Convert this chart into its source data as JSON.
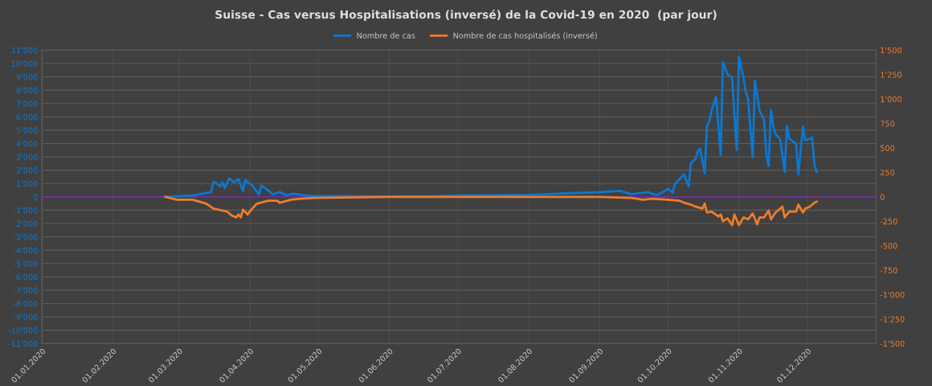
{
  "chart_data": {
    "type": "line",
    "title": "Suisse - Cas versus Hospitalisations (inversé) de la Covid-19 en 2020  (par jour)",
    "series": [
      {
        "name": "Nombre de cas",
        "color": "#0a78d2",
        "axis": "y",
        "x": [
          "2020-02-24",
          "2020-03-07",
          "2020-03-15",
          "2020-03-16",
          "2020-03-17",
          "2020-03-19",
          "2020-03-20",
          "2020-03-21",
          "2020-03-23",
          "2020-03-25",
          "2020-03-27",
          "2020-03-29",
          "2020-03-30",
          "2020-03-31",
          "2020-04-02",
          "2020-04-05",
          "2020-04-06",
          "2020-04-09",
          "2020-04-11",
          "2020-04-14",
          "2020-04-17",
          "2020-04-20",
          "2020-04-25",
          "2020-04-28",
          "2020-05-15",
          "2020-06-01",
          "2020-06-20",
          "2020-07-01",
          "2020-07-15",
          "2020-08-01",
          "2020-08-15",
          "2020-09-01",
          "2020-09-10",
          "2020-09-15",
          "2020-09-20",
          "2020-09-22",
          "2020-09-26",
          "2020-09-28",
          "2020-10-01",
          "2020-10-03",
          "2020-10-04",
          "2020-10-06",
          "2020-10-08",
          "2020-10-10",
          "2020-10-11",
          "2020-10-13",
          "2020-10-14",
          "2020-10-15",
          "2020-10-17",
          "2020-10-18",
          "2020-10-19",
          "2020-10-20",
          "2020-10-22",
          "2020-10-24",
          "2020-10-25",
          "2020-10-26",
          "2020-10-27",
          "2020-10-29",
          "2020-10-31",
          "2020-11-01",
          "2020-11-03",
          "2020-11-04",
          "2020-11-05",
          "2020-11-07",
          "2020-11-08",
          "2020-11-10",
          "2020-11-12",
          "2020-11-13",
          "2020-11-14",
          "2020-11-15",
          "2020-11-16",
          "2020-11-17",
          "2020-11-19",
          "2020-11-21",
          "2020-11-22",
          "2020-11-23",
          "2020-11-24",
          "2020-11-26",
          "2020-11-27",
          "2020-11-29",
          "2020-11-30",
          "2020-12-02",
          "2020-12-03",
          "2020-12-04",
          "2020-12-05"
        ],
        "values": [
          0,
          100,
          360,
          1090,
          1090,
          790,
          1090,
          660,
          1390,
          1090,
          1330,
          420,
          1270,
          1090,
          850,
          180,
          850,
          480,
          180,
          360,
          120,
          240,
          120,
          60,
          50,
          30,
          40,
          100,
          120,
          150,
          250,
          350,
          450,
          200,
          300,
          360,
          120,
          300,
          600,
          300,
          970,
          1330,
          1690,
          790,
          2540,
          2840,
          3440,
          3630,
          1750,
          5320,
          5620,
          6470,
          7490,
          3140,
          10090,
          9670,
          9180,
          8940,
          3500,
          10510,
          8940,
          7850,
          7370,
          2960,
          8700,
          6470,
          5740,
          3140,
          2300,
          6530,
          5320,
          4710,
          4350,
          1870,
          5320,
          4350,
          4230,
          3990,
          1690,
          5260,
          4230,
          4350,
          4470,
          2420,
          1870
        ]
      },
      {
        "name": "Nombre de cas hospitalisés (inversé)",
        "color": "#f07c2a",
        "axis": "y2",
        "x": [
          "2020-02-24",
          "2020-02-29",
          "2020-03-07",
          "2020-03-13",
          "2020-03-16",
          "2020-03-20",
          "2020-03-22",
          "2020-03-24",
          "2020-03-26",
          "2020-03-27",
          "2020-03-28",
          "2020-03-29",
          "2020-03-31",
          "2020-04-02",
          "2020-04-04",
          "2020-04-09",
          "2020-04-13",
          "2020-04-14",
          "2020-04-19",
          "2020-04-23",
          "2020-04-29",
          "2020-06-01",
          "2020-07-15",
          "2020-09-01",
          "2020-09-15",
          "2020-09-20",
          "2020-09-24",
          "2020-10-01",
          "2020-10-06",
          "2020-10-08",
          "2020-10-11",
          "2020-10-13",
          "2020-10-16",
          "2020-10-17",
          "2020-10-18",
          "2020-10-20",
          "2020-10-23",
          "2020-10-24",
          "2020-10-25",
          "2020-10-27",
          "2020-10-29",
          "2020-10-30",
          "2020-11-01",
          "2020-11-03",
          "2020-11-05",
          "2020-11-07",
          "2020-11-09",
          "2020-11-10",
          "2020-11-12",
          "2020-11-14",
          "2020-11-15",
          "2020-11-17",
          "2020-11-20",
          "2020-11-21",
          "2020-11-23",
          "2020-11-26",
          "2020-11-27",
          "2020-11-29",
          "2020-11-30",
          "2020-12-02",
          "2020-12-04",
          "2020-12-05"
        ],
        "values": [
          0,
          -30,
          -30,
          -70,
          -120,
          -140,
          -150,
          -190,
          -210,
          -180,
          -210,
          -130,
          -180,
          -120,
          -70,
          -40,
          -40,
          -60,
          -30,
          -20,
          -10,
          0,
          0,
          0,
          -10,
          -30,
          -20,
          -30,
          -40,
          -60,
          -80,
          -100,
          -120,
          -70,
          -160,
          -150,
          -200,
          -180,
          -250,
          -220,
          -290,
          -180,
          -290,
          -210,
          -230,
          -170,
          -280,
          -210,
          -210,
          -140,
          -230,
          -160,
          -100,
          -210,
          -150,
          -150,
          -80,
          -160,
          -120,
          -100,
          -60,
          -50
        ]
      }
    ],
    "xlim": [
      "2020-01-01",
      "2020-12-31"
    ],
    "xticks": [
      {
        "value": "2020-01-01",
        "label": "01.01.2020"
      },
      {
        "value": "2020-02-01",
        "label": "01.02.2020"
      },
      {
        "value": "2020-03-01",
        "label": "01.03.2020"
      },
      {
        "value": "2020-04-01",
        "label": "01.04.2020"
      },
      {
        "value": "2020-05-01",
        "label": "01.05.2020"
      },
      {
        "value": "2020-06-01",
        "label": "01.06.2020"
      },
      {
        "value": "2020-07-01",
        "label": "01.07.2020"
      },
      {
        "value": "2020-08-01",
        "label": "01.08.2020"
      },
      {
        "value": "2020-09-01",
        "label": "01.09.2020"
      },
      {
        "value": "2020-10-01",
        "label": "01.10.2020"
      },
      {
        "value": "2020-11-01",
        "label": "01.11.2020"
      },
      {
        "value": "2020-12-01",
        "label": "01.12.2020"
      }
    ],
    "ylim": [
      -11000,
      11000
    ],
    "yticks": [
      {
        "value": -11000,
        "label": "-11'000"
      },
      {
        "value": -10000,
        "label": "-10'000"
      },
      {
        "value": -9000,
        "label": "-9'000"
      },
      {
        "value": -8000,
        "label": "-8'000"
      },
      {
        "value": -7000,
        "label": "-7'000"
      },
      {
        "value": -6000,
        "label": "-6'000"
      },
      {
        "value": -5000,
        "label": "-5'000"
      },
      {
        "value": -4000,
        "label": "-4'000"
      },
      {
        "value": -3000,
        "label": "-3'000"
      },
      {
        "value": -2000,
        "label": "-2'000"
      },
      {
        "value": -1000,
        "label": "-1'000"
      },
      0,
      {
        "value": 1000,
        "label": "1'000"
      },
      {
        "value": 2000,
        "label": "2'000"
      },
      {
        "value": 3000,
        "label": "3'000"
      },
      {
        "value": 4000,
        "label": "4'000"
      },
      {
        "value": 5000,
        "label": "5'000"
      },
      {
        "value": 6000,
        "label": "6'000"
      },
      {
        "value": 7000,
        "label": "7'000"
      },
      {
        "value": 8000,
        "label": "8'000"
      },
      {
        "value": 9000,
        "label": "9'000"
      },
      {
        "value": 10000,
        "label": "10'000"
      },
      {
        "value": 11000,
        "label": "11'000"
      }
    ],
    "y2lim": [
      -1500,
      1500
    ],
    "y2ticks": [
      {
        "value": -1500,
        "label": "-1'500"
      },
      {
        "value": -1250,
        "label": "-1'250"
      },
      {
        "value": -1000,
        "label": "-1'000"
      },
      -750,
      -500,
      -250,
      0,
      250,
      500,
      750,
      {
        "value": 1000,
        "label": "1'000"
      },
      {
        "value": 1250,
        "label": "1'250"
      },
      {
        "value": 1500,
        "label": "1'500"
      }
    ],
    "ref_lines": [
      {
        "axis": "y",
        "value": 0,
        "color": "#7030a0"
      }
    ],
    "grid": true,
    "legend": "top",
    "marker": "none",
    "line_style": "solid"
  }
}
